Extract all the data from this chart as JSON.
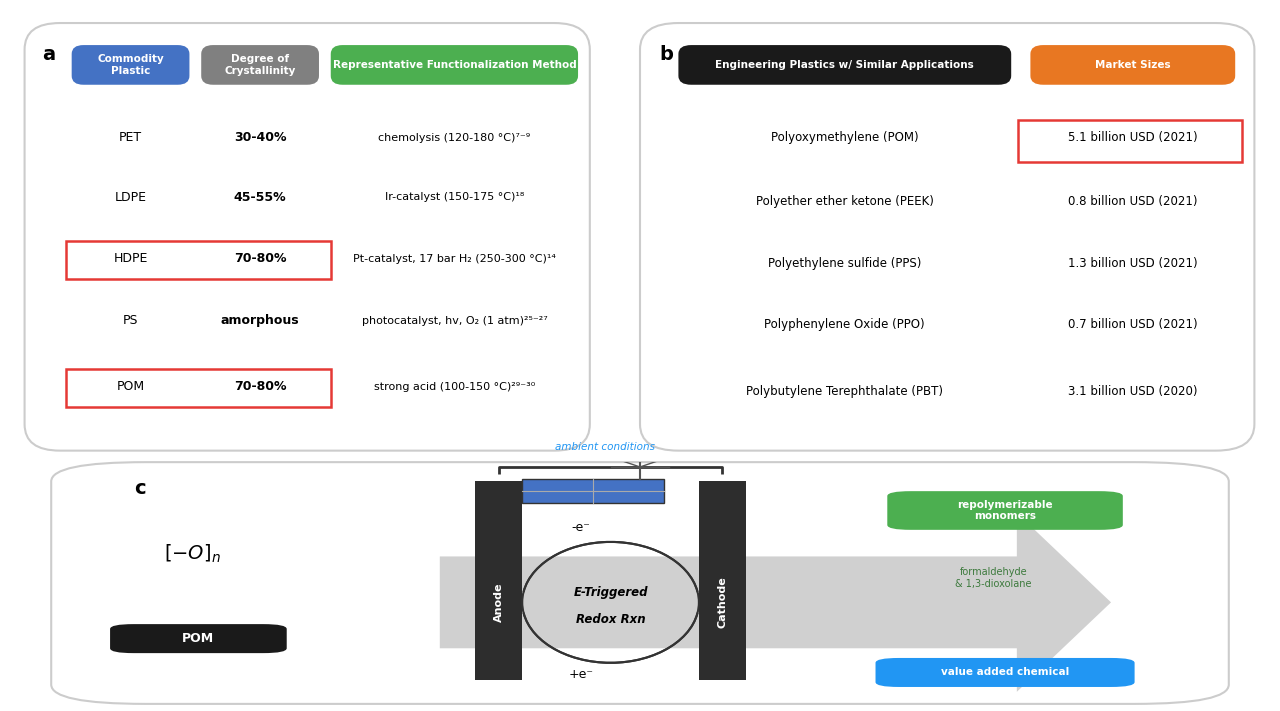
{
  "panel_a": {
    "label": "a",
    "header_col1": "Commodity\nPlastic",
    "header_col2": "Degree of\nCrystallinity",
    "header_col3": "Representative Functionalization Method",
    "header_col1_color": "#4472c4",
    "header_col2_color": "#808080",
    "header_col3_color": "#4caf50",
    "rows": [
      {
        "col1": "PET",
        "col2": "30-40%",
        "col3": "chemolysis (120-180 °C)⁷⁻⁹",
        "red_box": false
      },
      {
        "col1": "LDPE",
        "col2": "45-55%",
        "col3": "Ir-catalyst (150-175 °C)¹⁸",
        "red_box": false
      },
      {
        "col1": "HDPE",
        "col2": "70-80%",
        "col3": "Pt-catalyst, 17 bar H₂ (250-300 °C)¹⁴",
        "red_box": true
      },
      {
        "col1": "PS",
        "col2": "amorphous",
        "col3": "photocatalyst, hv, O₂ (1 atm)²⁵⁻²⁷",
        "red_box": false
      },
      {
        "col1": "POM",
        "col2": "70-80%",
        "col3": "strong acid (100-150 °C)²⁹⁻³⁰",
        "red_box": true
      }
    ]
  },
  "panel_b": {
    "label": "b",
    "header_col1": "Engineering Plastics w/ Similar Applications",
    "header_col2": "Market Sizes",
    "header_col1_color": "#1a1a1a",
    "header_col2_color": "#e87722",
    "rows": [
      {
        "col1": "Polyoxymethylene (POM)",
        "col2": "5.1 billion USD (2021)",
        "red_box": true
      },
      {
        "col1": "Polyether ether ketone (PEEK)",
        "col2": "0.8 billion USD (2021)",
        "red_box": false
      },
      {
        "col1": "Polyethylene sulfide (PPS)",
        "col2": "1.3 billion USD (2021)",
        "red_box": false
      },
      {
        "col1": "Polyphenylene Oxide (PPO)",
        "col2": "0.7 billion USD (2021)",
        "red_box": false
      },
      {
        "col1": "Polybutylene Terephthalate (PBT)",
        "col2": "3.1 billion USD (2020)",
        "red_box": false
      }
    ]
  },
  "panel_c": {
    "label": "c",
    "ambient_text": "ambient conditions",
    "anode_text": "Anode",
    "cathode_text": "Cathode",
    "center_text1": "E-Triggered",
    "center_text2": "Redox Rxn",
    "minus_e": "-e⁻",
    "plus_e": "+e⁻",
    "pom_label": "POM",
    "green_box_text": "repolymerizable\nmonomers",
    "blue_box_text": "value added chemical",
    "green_color": "#4caf50",
    "blue_color": "#2196f3"
  },
  "bg_color": "#ffffff",
  "panel_bg": "#ffffff",
  "border_color": "#cccccc",
  "red_box_color": "#e53935",
  "text_color": "#222222"
}
